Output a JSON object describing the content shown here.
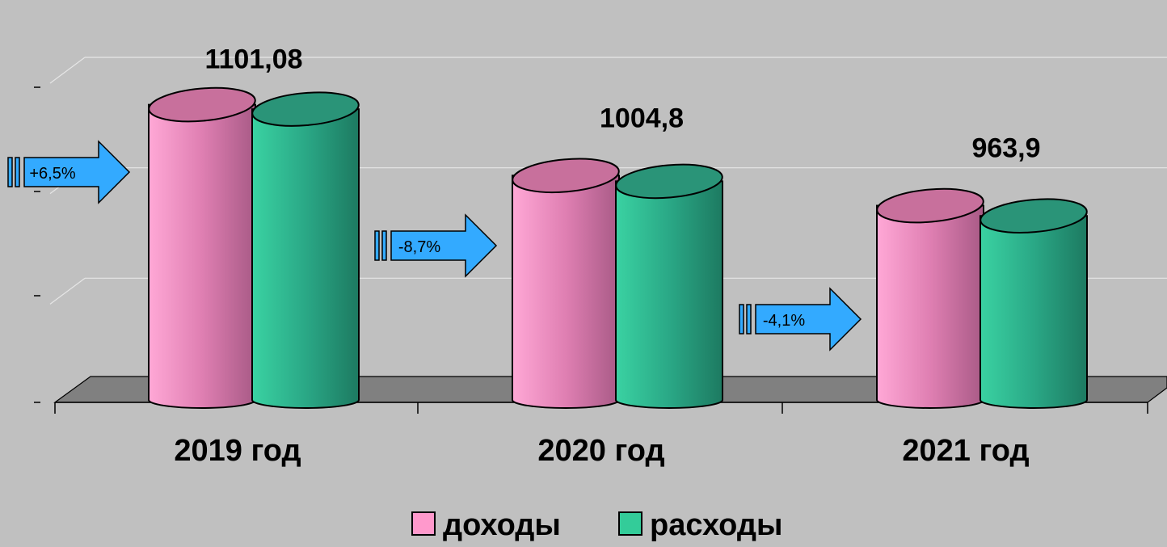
{
  "chart_data": {
    "type": "bar",
    "style": "3d-cylinder",
    "categories": [
      "2019 год",
      "2020 год",
      "2021 год"
    ],
    "series": [
      {
        "name": "доходы",
        "values": [
          1101.08,
          1004.8,
          963.9
        ],
        "color": "#ff99cc"
      },
      {
        "name": "расходы",
        "values": [
          1095.0,
          997.0,
          950.0
        ],
        "color": "#33cc99"
      }
    ],
    "data_labels": [
      "1101,08",
      "1004,8",
      "963,9"
    ],
    "change_labels": [
      "+6,5%",
      "-8,7%",
      "-4,1%"
    ],
    "ylim": [
      700,
      1150
    ],
    "grid": true,
    "legend": "bottom-center",
    "colors": {
      "background": "#c0c0c0",
      "floor": "#808080",
      "arrow": "#33aaff",
      "pink": "#ff99cc",
      "teal": "#33cc99"
    }
  }
}
